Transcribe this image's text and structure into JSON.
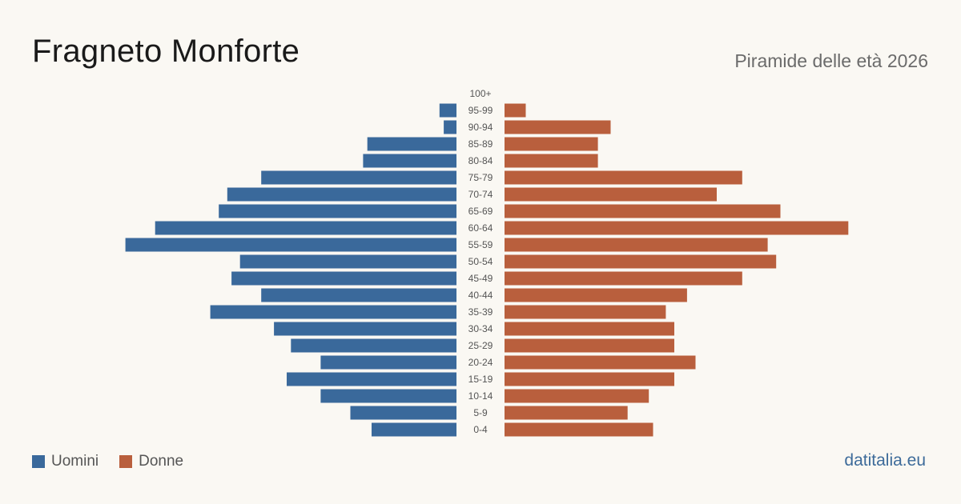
{
  "header": {
    "title": "Fragneto Monforte",
    "subtitle": "Piramide delle età 2026"
  },
  "legend": {
    "male_label": "Uomini",
    "female_label": "Donne"
  },
  "footer": {
    "source": "datitalia.eu"
  },
  "colors": {
    "male": "#3a699b",
    "female": "#b95f3d",
    "background": "#faf8f3",
    "tick_label": "#555555"
  },
  "chart_data": {
    "type": "bar",
    "orientation": "horizontal-population-pyramid",
    "categories": [
      "100+",
      "95-99",
      "90-94",
      "85-89",
      "80-84",
      "75-79",
      "70-74",
      "65-69",
      "60-64",
      "55-59",
      "50-54",
      "45-49",
      "40-44",
      "35-39",
      "30-34",
      "25-29",
      "20-24",
      "15-19",
      "10-14",
      "5-9",
      "0-4"
    ],
    "series": [
      {
        "name": "Uomini",
        "values": [
          0,
          4,
          3,
          21,
          22,
          46,
          54,
          56,
          71,
          78,
          51,
          53,
          46,
          58,
          43,
          39,
          32,
          40,
          32,
          25,
          20
        ]
      },
      {
        "name": "Donne",
        "values": [
          0,
          5,
          25,
          22,
          22,
          56,
          50,
          65,
          81,
          62,
          64,
          56,
          43,
          38,
          40,
          40,
          45,
          40,
          34,
          29,
          35
        ]
      }
    ],
    "grid": false,
    "legend_position": "bottom-left"
  }
}
